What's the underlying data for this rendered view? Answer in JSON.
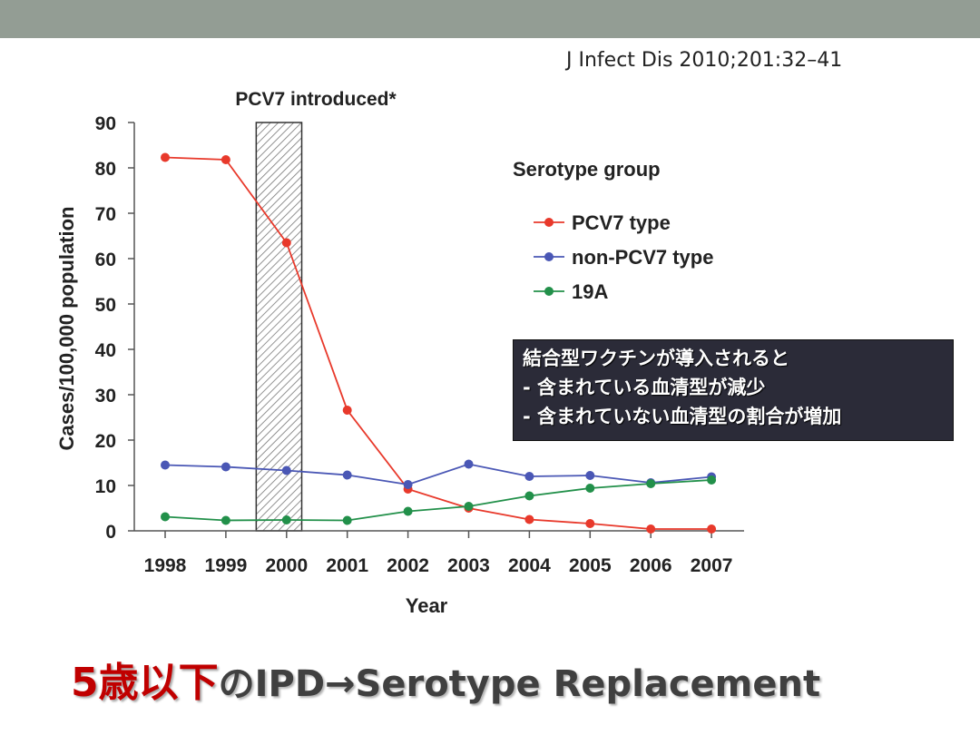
{
  "citation": "J Infect Dis 2010;201:32–41",
  "callout": {
    "lines": [
      "結合型ワクチンが導入されると",
      "- 含まれている血清型が減少",
      "- 含まれていない血清型の割合が増加"
    ]
  },
  "slide_title": {
    "highlight": "5歳以下",
    "rest": "のIPD→Serotype Replacement"
  },
  "chart_data": {
    "type": "line",
    "title": "",
    "annotation": "PCV7 introduced*",
    "annotation_range": [
      1999.5,
      2000.25
    ],
    "xlabel": "Year",
    "ylabel": "Cases/100,000 population",
    "ylim": [
      0,
      90
    ],
    "yticks": [
      0,
      10,
      20,
      30,
      40,
      50,
      60,
      70,
      80,
      90
    ],
    "x": [
      1998,
      1999,
      2000,
      2001,
      2002,
      2003,
      2004,
      2005,
      2006,
      2007
    ],
    "legend_title": "Serotype group",
    "legend_position": "top-right",
    "grid": false,
    "series": [
      {
        "name": "PCV7 type",
        "color": "#e8392b",
        "values": [
          82.3,
          81.8,
          63.5,
          26.6,
          9.2,
          5.0,
          2.5,
          1.6,
          0.4,
          0.4
        ]
      },
      {
        "name": "non-PCV7 type",
        "color": "#4a57b5",
        "values": [
          14.5,
          14.1,
          13.3,
          12.3,
          10.2,
          14.7,
          12.0,
          12.2,
          10.6,
          11.9
        ]
      },
      {
        "name": "19A",
        "color": "#22904a",
        "values": [
          3.1,
          2.3,
          2.4,
          2.3,
          4.3,
          5.4,
          7.7,
          9.4,
          10.4,
          11.2
        ]
      }
    ]
  }
}
